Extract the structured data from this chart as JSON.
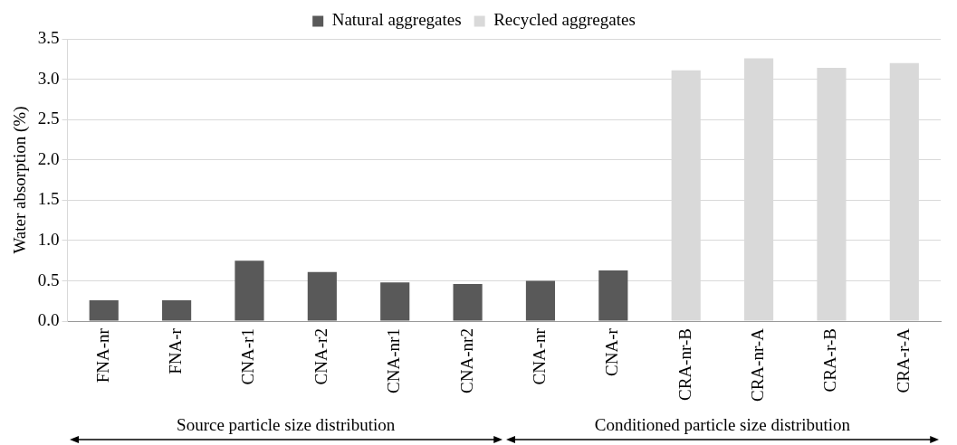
{
  "chart_data": {
    "type": "bar",
    "ylabel": "Water absorption (%)",
    "categories": [
      "FNA-nr",
      "FNA-r",
      "CNA-r1",
      "CNA-r2",
      "CNA-nr1",
      "CNA-nr2",
      "CNA-nr",
      "CNA-r",
      "CRA-nr-B",
      "CRA-nr-A",
      "CRA-r-B",
      "CRA-r-A"
    ],
    "series": [
      {
        "name": "Natural aggregates",
        "color": "#595959",
        "values": [
          0.26,
          0.26,
          0.75,
          0.61,
          0.48,
          0.46,
          0.5,
          0.63,
          null,
          null,
          null,
          null
        ]
      },
      {
        "name": "Recycled aggregates",
        "color": "#d9d9d9",
        "values": [
          null,
          null,
          null,
          null,
          null,
          null,
          null,
          null,
          3.11,
          3.26,
          3.14,
          3.2
        ]
      }
    ],
    "ylim": [
      0,
      3.5
    ],
    "yticks": [
      {
        "value": 0,
        "label": "0.0"
      },
      0.5,
      {
        "value": 1,
        "label": "1.0"
      },
      1.5,
      {
        "value": 2,
        "label": "2.0"
      },
      2.5,
      {
        "value": 3,
        "label": "3.0"
      },
      3.5
    ],
    "grid": "y",
    "legend": "top",
    "annotations": [
      "Source particle size distribution",
      "Conditioned particle size distribution"
    ]
  }
}
